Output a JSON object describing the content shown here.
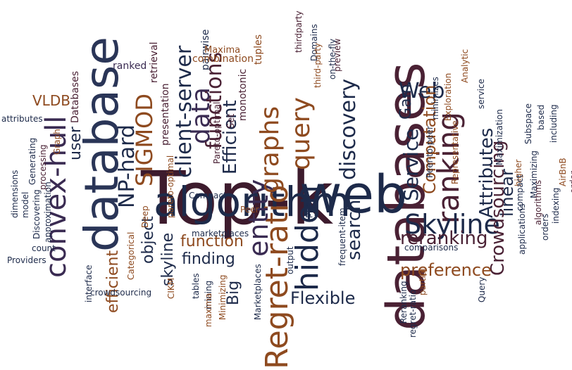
{
  "words": [
    {
      "text": "Top-k",
      "color": "#3d1b2d"
    },
    {
      "text": "databases",
      "color": "#4a2134"
    },
    {
      "text": "database",
      "color": "#2a3557"
    },
    {
      "text": "algorithm",
      "color": "#1d2a4a"
    },
    {
      "text": "web",
      "color": "#1d2a4a"
    },
    {
      "text": "Regret-ratio",
      "color": "#8e4a1f"
    },
    {
      "text": "convex-hull",
      "color": "#3a2b52"
    },
    {
      "text": "hidden",
      "color": "#1d2a4a"
    },
    {
      "text": "entity",
      "color": "#3a2b52"
    },
    {
      "text": "query",
      "color": "#8e4a1f"
    },
    {
      "text": "ranking",
      "color": "#4a2134"
    },
    {
      "text": "Skyline",
      "color": "#1d2a4a"
    },
    {
      "text": "graphs",
      "color": "#8e4a1f"
    },
    {
      "text": "data",
      "color": "#3a2b52"
    },
    {
      "text": "SIGMOD",
      "color": "#8e4a1f"
    },
    {
      "text": "NP-hard",
      "color": "#1d2a4a"
    },
    {
      "text": "client-server",
      "color": "#1d2a4a"
    },
    {
      "text": "functions",
      "color": "#4a2134"
    },
    {
      "text": "Efficient",
      "color": "#1d2a4a"
    },
    {
      "text": "discovery",
      "color": "#1d2a4a"
    },
    {
      "text": "search",
      "color": "#1d2a4a"
    },
    {
      "text": "Web",
      "color": "#1d2a4a"
    },
    {
      "text": "Service",
      "color": "#1d2a4a"
    },
    {
      "text": "Gain",
      "color": "#1d2a4a"
    },
    {
      "text": "Computation",
      "color": "#8e4a1f"
    },
    {
      "text": "Attributes",
      "color": "#1d2a4a"
    },
    {
      "text": "linear",
      "color": "#1d2a4a"
    },
    {
      "text": "Crowdsourcing",
      "color": "#4a2134"
    },
    {
      "text": "reranking",
      "color": "#4a2134"
    },
    {
      "text": "preference",
      "color": "#8e4a1f"
    },
    {
      "text": "Flexible",
      "color": "#1d2a4a"
    },
    {
      "text": "function",
      "color": "#8e4a1f"
    },
    {
      "text": "finding",
      "color": "#1d2a4a"
    },
    {
      "text": "object",
      "color": "#1d2a4a"
    },
    {
      "text": "skyline",
      "color": "#1d2a4a"
    },
    {
      "text": "efficient",
      "color": "#8e4a1f"
    },
    {
      "text": "user",
      "color": "#1d2a4a"
    },
    {
      "text": "VLDB",
      "color": "#8e4a1f"
    },
    {
      "text": "Big",
      "color": "#1d2a4a"
    },
    {
      "text": "Databases",
      "color": "#4a2134"
    },
    {
      "text": "ranked",
      "color": "#3a2b52"
    },
    {
      "text": "retrieval",
      "color": "#4a2134"
    },
    {
      "text": "presentation",
      "color": "#4a2134"
    },
    {
      "text": "pareto-optimal",
      "color": "#8e4a1f"
    },
    {
      "text": "Pareto-optimal",
      "color": "#4a2134"
    },
    {
      "text": "pairwise",
      "color": "#1d2a4a"
    },
    {
      "text": "Maxima",
      "color": "#8e4a1f"
    },
    {
      "text": "combination",
      "color": "#8e4a1f"
    },
    {
      "text": "tuples",
      "color": "#8e4a1f"
    },
    {
      "text": "monotonic",
      "color": "#4a2134"
    },
    {
      "text": "Set",
      "color": "#4a2134"
    },
    {
      "text": "thirdparty",
      "color": "#4a2134"
    },
    {
      "text": "Domains",
      "color": "#1d2a4a"
    },
    {
      "text": "third-party",
      "color": "#8e4a1f"
    },
    {
      "text": "on-the-fly",
      "color": "#1d2a4a"
    },
    {
      "text": "preview",
      "color": "#4a2134"
    },
    {
      "text": "Analytic",
      "color": "#8e4a1f"
    },
    {
      "text": "service",
      "color": "#1d2a4a"
    },
    {
      "text": "minimizes",
      "color": "#1d2a4a"
    },
    {
      "text": "Exploration",
      "color": "#8e4a1f"
    },
    {
      "text": "Peer-to-peer",
      "color": "#1d2a4a"
    },
    {
      "text": "Maximization",
      "color": "#1d2a4a"
    },
    {
      "text": "Representative",
      "color": "#8e4a1f"
    },
    {
      "text": "Subspace",
      "color": "#1d2a4a"
    },
    {
      "text": "based",
      "color": "#1d2a4a"
    },
    {
      "text": "including",
      "color": "#1d2a4a"
    },
    {
      "text": "higher",
      "color": "#8e4a1f"
    },
    {
      "text": "Maximizing",
      "color": "#1d2a4a"
    },
    {
      "text": "compact",
      "color": "#1d2a4a"
    },
    {
      "text": "AirBnB",
      "color": "#8e4a1f"
    },
    {
      "text": "algorithms",
      "color": "#4a2134"
    },
    {
      "text": "indexing",
      "color": "#1d2a4a"
    },
    {
      "text": "order",
      "color": "#4a2134"
    },
    {
      "text": "orders",
      "color": "#1d2a4a"
    },
    {
      "text": "applications",
      "color": "#1d2a4a"
    },
    {
      "text": "comparisons",
      "color": "#1d2a4a"
    },
    {
      "text": "Query",
      "color": "#1d2a4a"
    },
    {
      "text": "partial",
      "color": "#8e4a1f"
    },
    {
      "text": "Reranking",
      "color": "#1d2a4a"
    },
    {
      "text": "regret-ratio",
      "color": "#1d2a4a"
    },
    {
      "text": "frequent-item",
      "color": "#1d2a4a"
    },
    {
      "text": "peer",
      "color": "#1d2a4a"
    },
    {
      "text": "Peer",
      "color": "#8e4a1f"
    },
    {
      "text": "output",
      "color": "#1d2a4a"
    },
    {
      "text": "Compact",
      "color": "#1d2a4a"
    },
    {
      "text": "marketplaces",
      "color": "#1d2a4a"
    },
    {
      "text": "Marketplaces",
      "color": "#1d2a4a"
    },
    {
      "text": "mining",
      "color": "#1d2a4a"
    },
    {
      "text": "Minimizing",
      "color": "#8e4a1f"
    },
    {
      "text": "maxima",
      "color": "#8e4a1f"
    },
    {
      "text": "tables",
      "color": "#1d2a4a"
    },
    {
      "text": "CIKM",
      "color": "#8e4a1f"
    },
    {
      "text": "Categorical",
      "color": "#8e4a1f"
    },
    {
      "text": "crowdsourcing",
      "color": "#1d2a4a"
    },
    {
      "text": "Deep",
      "color": "#8e4a1f"
    },
    {
      "text": "interface",
      "color": "#1d2a4a"
    },
    {
      "text": "count",
      "color": "#1d2a4a"
    },
    {
      "text": "Providers",
      "color": "#1d2a4a"
    },
    {
      "text": "Discovering",
      "color": "#1d2a4a"
    },
    {
      "text": "approximation",
      "color": "#1d2a4a"
    },
    {
      "text": "processing",
      "color": "#4a2134"
    },
    {
      "text": "Graph",
      "color": "#8e4a1f"
    },
    {
      "text": "model",
      "color": "#1d2a4a"
    },
    {
      "text": "Generating",
      "color": "#1d2a4a"
    },
    {
      "text": "dimensions",
      "color": "#1d2a4a"
    },
    {
      "text": "attributes",
      "color": "#1d2a4a"
    }
  ]
}
